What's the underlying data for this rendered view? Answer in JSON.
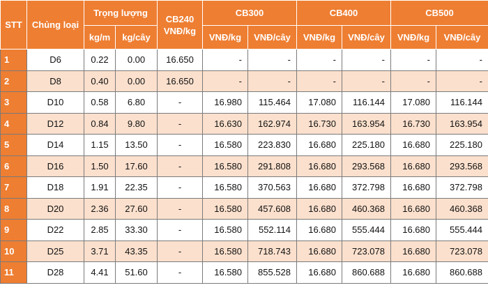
{
  "header": {
    "row1": [
      "STT",
      "Chủng loại",
      "Trọng lượng",
      "CB240\nVNĐ/kg",
      "CB300",
      "CB400",
      "CB500"
    ],
    "row2": [
      "kg/m",
      "kg/cây",
      "VNĐ/kg",
      "VNĐ/cây",
      "VNĐ/kg",
      "VNĐ/cây",
      "VNĐ/kg",
      "VNĐ/cây"
    ]
  },
  "table": {
    "rows": [
      [
        "1",
        "D6",
        "0.22",
        "0.00",
        "16.650",
        "-",
        "-",
        "-",
        "-",
        "-",
        "-"
      ],
      [
        "2",
        "D8",
        "0.40",
        "0.00",
        "16.650",
        "-",
        "-",
        "-",
        "-",
        "-",
        "-"
      ],
      [
        "3",
        "D10",
        "0.58",
        "6.80",
        "-",
        "16.980",
        "115.464",
        "17.080",
        "116.144",
        "17.080",
        "116.144"
      ],
      [
        "4",
        "D12",
        "0.84",
        "9.80",
        "-",
        "16.630",
        "162.974",
        "16.730",
        "163.954",
        "16.730",
        "163.954"
      ],
      [
        "5",
        "D14",
        "1.15",
        "13.50",
        "-",
        "16.580",
        "223.830",
        "16.680",
        "225.180",
        "16.680",
        "225.180"
      ],
      [
        "6",
        "D16",
        "1.50",
        "17.60",
        "-",
        "16.580",
        "291.808",
        "16.680",
        "293.568",
        "16.680",
        "293.568"
      ],
      [
        "7",
        "D18",
        "1.91",
        "22.35",
        "-",
        "16.580",
        "370.563",
        "16.680",
        "372.798",
        "16.680",
        "372.798"
      ],
      [
        "8",
        "D20",
        "2.36",
        "27.60",
        "-",
        "16.580",
        "457.608",
        "16.680",
        "460.368",
        "16.680",
        "460.368"
      ],
      [
        "9",
        "D22",
        "2.85",
        "33.30",
        "-",
        "16.580",
        "552.114",
        "16.680",
        "555.444",
        "16.680",
        "555.444"
      ],
      [
        "10",
        "D25",
        "3.71",
        "43.35",
        "-",
        "16.580",
        "718.743",
        "16.680",
        "723.078",
        "16.680",
        "723.078"
      ],
      [
        "11",
        "D28",
        "4.41",
        "51.60",
        "-",
        "16.580",
        "855.528",
        "16.680",
        "860.688",
        "16.680",
        "860.688"
      ]
    ]
  }
}
